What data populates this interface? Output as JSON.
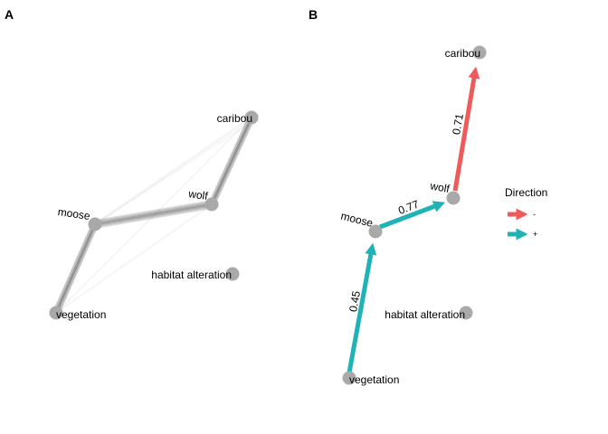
{
  "panels": {
    "a": {
      "label": "A"
    },
    "b": {
      "label": "B"
    }
  },
  "nodes": {
    "caribou": "caribou",
    "wolf": "wolf",
    "moose": "moose",
    "vegetation": "vegetation",
    "habitat_alteration": "habitat alteration"
  },
  "panel_b_edges": {
    "vegetation_moose": {
      "label": "0.45",
      "color": "#1fb3b8",
      "direction": "+"
    },
    "moose_wolf": {
      "label": "0.77",
      "color": "#1fb3b8",
      "direction": "+"
    },
    "wolf_caribou": {
      "label": "0.71",
      "color": "#ef5b5b",
      "direction": "-"
    }
  },
  "legend": {
    "title": "Direction",
    "items": [
      {
        "label": "-",
        "color": "#ef5b5b"
      },
      {
        "label": "+",
        "color": "#1fb3b8"
      }
    ]
  },
  "colors": {
    "node": "#a9a9a9",
    "panel_a_edge": "#000000",
    "negative": "#ef5b5b",
    "positive": "#1fb3b8"
  }
}
